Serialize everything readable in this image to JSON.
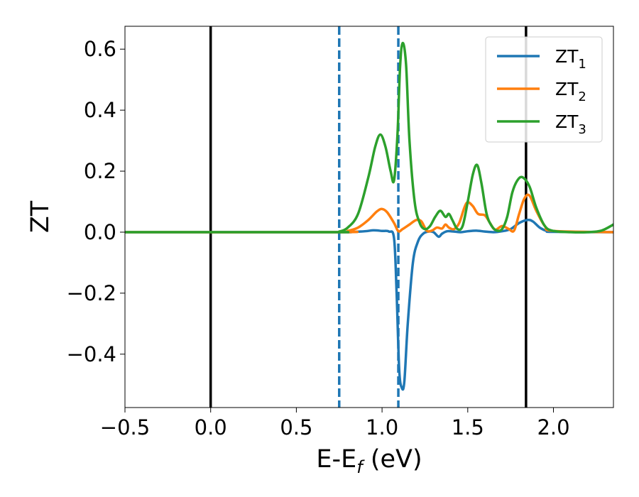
{
  "chart_data": {
    "type": "line",
    "xlabel": "E-E",
    "xlabel_subscript": "f",
    "xlabel_unit": " (eV)",
    "ylabel": "ZT",
    "xlim": [
      -0.5,
      2.35
    ],
    "ylim": [
      -0.575,
      0.675
    ],
    "x_ticks": [
      -0.5,
      0.0,
      0.5,
      1.0,
      1.5,
      2.0
    ],
    "x_tick_labels": [
      "−0.5",
      "0.0",
      "0.5",
      "1.0",
      "1.5",
      "2.0"
    ],
    "y_ticks": [
      -0.4,
      -0.2,
      0.0,
      0.2,
      0.4,
      0.6
    ],
    "y_tick_labels": [
      "−0.4",
      "−0.2",
      "0.0",
      "0.2",
      "0.4",
      "0.6"
    ],
    "grid": false,
    "legend_position": "top-right",
    "vertical_lines": [
      {
        "x": 0.0,
        "style": "solid",
        "color": "#000000"
      },
      {
        "x": 1.84,
        "style": "solid",
        "color": "#000000"
      },
      {
        "x": 0.75,
        "style": "dashed",
        "color": "#1f77b4"
      },
      {
        "x": 1.095,
        "style": "dashed",
        "color": "#1f77b4"
      }
    ],
    "series": [
      {
        "name": "ZT",
        "subscript": "1",
        "color": "#1f77b4",
        "x": [
          -0.5,
          0.7,
          0.8,
          0.9,
          0.95,
          1.0,
          1.04,
          1.07,
          1.085,
          1.1,
          1.115,
          1.13,
          1.15,
          1.18,
          1.21,
          1.24,
          1.27,
          1.3,
          1.33,
          1.35,
          1.38,
          1.42,
          1.46,
          1.5,
          1.55,
          1.6,
          1.65,
          1.7,
          1.75,
          1.8,
          1.85,
          1.88,
          1.92,
          1.96,
          2.0,
          2.35
        ],
        "values": [
          0,
          0,
          0,
          0.003,
          0.006,
          0.004,
          0.002,
          -0.02,
          -0.2,
          -0.45,
          -0.51,
          -0.49,
          -0.3,
          -0.1,
          -0.03,
          -0.005,
          0.002,
          0.0,
          -0.015,
          -0.005,
          0.003,
          0.002,
          0.0,
          0.003,
          0.005,
          0.002,
          0.0,
          0.003,
          0.01,
          0.03,
          0.04,
          0.035,
          0.015,
          0.004,
          0.001,
          0
        ]
      },
      {
        "name": "ZT",
        "subscript": "2",
        "color": "#ff7f0e",
        "x": [
          -0.5,
          0.75,
          0.8,
          0.86,
          0.92,
          0.97,
          1.0,
          1.03,
          1.07,
          1.095,
          1.12,
          1.16,
          1.2,
          1.23,
          1.26,
          1.29,
          1.32,
          1.35,
          1.37,
          1.39,
          1.42,
          1.45,
          1.48,
          1.5,
          1.53,
          1.56,
          1.6,
          1.63,
          1.66,
          1.7,
          1.74,
          1.77,
          1.8,
          1.83,
          1.86,
          1.9,
          1.95,
          2.0,
          2.35
        ],
        "values": [
          0,
          0,
          0.004,
          0.015,
          0.04,
          0.068,
          0.076,
          0.065,
          0.03,
          0.003,
          0.01,
          0.025,
          0.04,
          0.035,
          0.005,
          0.005,
          0.015,
          0.012,
          0.025,
          0.015,
          0.01,
          0.03,
          0.08,
          0.098,
          0.085,
          0.06,
          0.055,
          0.03,
          0.008,
          0.02,
          0.01,
          0.005,
          0.06,
          0.11,
          0.12,
          0.07,
          0.02,
          0.004,
          0
        ]
      },
      {
        "name": "ZT",
        "subscript": "3",
        "color": "#2ca02c",
        "x": [
          -0.5,
          0.7,
          0.75,
          0.8,
          0.86,
          0.92,
          0.96,
          0.99,
          1.02,
          1.05,
          1.07,
          1.09,
          1.105,
          1.12,
          1.14,
          1.16,
          1.19,
          1.22,
          1.25,
          1.28,
          1.31,
          1.34,
          1.37,
          1.39,
          1.41,
          1.44,
          1.47,
          1.5,
          1.53,
          1.555,
          1.58,
          1.61,
          1.64,
          1.67,
          1.7,
          1.73,
          1.76,
          1.79,
          1.82,
          1.86,
          1.9,
          1.95,
          2.0,
          2.1,
          2.2,
          2.28,
          2.35
        ],
        "values": [
          0,
          0,
          0.002,
          0.015,
          0.06,
          0.18,
          0.28,
          0.32,
          0.28,
          0.2,
          0.17,
          0.32,
          0.54,
          0.62,
          0.55,
          0.3,
          0.1,
          0.03,
          0.01,
          0.02,
          0.05,
          0.07,
          0.05,
          0.06,
          0.04,
          0.01,
          0.02,
          0.1,
          0.19,
          0.22,
          0.16,
          0.06,
          0.02,
          0.005,
          0.01,
          0.05,
          0.13,
          0.17,
          0.18,
          0.15,
          0.08,
          0.02,
          0.004,
          0,
          0,
          0.005,
          0.025
        ]
      }
    ]
  }
}
